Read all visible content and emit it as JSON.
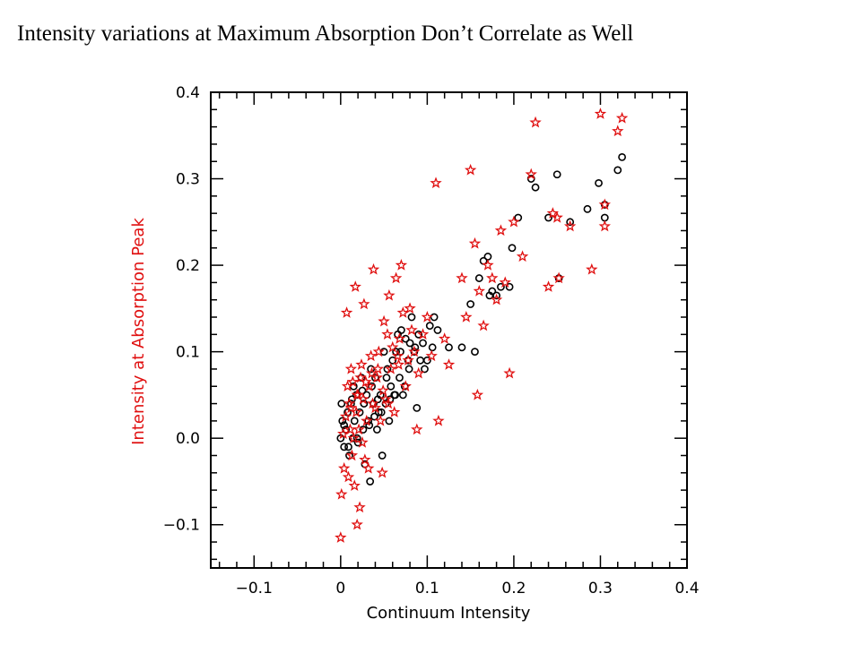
{
  "slide": {
    "title": "Intensity variations at Maximum Absorption Don’t Correlate as Well"
  },
  "chart_data": {
    "type": "scatter",
    "title": "",
    "xlabel": "Continuum Intensity",
    "ylabel": "Intensity at Absorption Peak",
    "xlim": [
      -0.15,
      0.4
    ],
    "ylim": [
      -0.15,
      0.4
    ],
    "xticks": [
      -0.1,
      0.0,
      0.1,
      0.2,
      0.3,
      0.4
    ],
    "yticks": [
      -0.1,
      0.0,
      0.1,
      0.2,
      0.3,
      0.4
    ],
    "xtick_labels": [
      "−0.1",
      "0",
      "0.1",
      "0.2",
      "0.3",
      "0.4"
    ],
    "ytick_labels": [
      "−0.1",
      "0.0",
      "0.1",
      "0.2",
      "0.3",
      "0.4"
    ],
    "grid": false,
    "colors": {
      "circles": "#000000",
      "stars": "#e01010",
      "ylabel": "#e01010",
      "xlabel": "#000000"
    },
    "series": [
      {
        "marker": "circle",
        "points": [
          [
            0.001,
            0.04
          ],
          [
            0.002,
            0.02
          ],
          [
            0.004,
            -0.01
          ],
          [
            0.006,
            0.01
          ],
          [
            0.008,
            0.03
          ],
          [
            0.01,
            -0.02
          ],
          [
            0.012,
            0.04
          ],
          [
            0.014,
            0.0
          ],
          [
            0.015,
            0.06
          ],
          [
            0.016,
            0.02
          ],
          [
            0.018,
            0.05
          ],
          [
            0.02,
            -0.005
          ],
          [
            0.022,
            0.03
          ],
          [
            0.024,
            0.07
          ],
          [
            0.026,
            0.01
          ],
          [
            0.028,
            -0.03
          ],
          [
            0.03,
            0.05
          ],
          [
            0.032,
            0.02
          ],
          [
            0.034,
            -0.05
          ],
          [
            0.035,
            0.08
          ],
          [
            0.036,
            0.06
          ],
          [
            0.038,
            0.04
          ],
          [
            0.04,
            0.07
          ],
          [
            0.042,
            0.01
          ],
          [
            0.044,
            0.03
          ],
          [
            0.046,
            0.05
          ],
          [
            0.048,
            -0.02
          ],
          [
            0.05,
            0.1
          ],
          [
            0.052,
            0.04
          ],
          [
            0.054,
            0.08
          ],
          [
            0.056,
            0.02
          ],
          [
            0.058,
            0.06
          ],
          [
            0.06,
            0.09
          ],
          [
            0.062,
            0.05
          ],
          [
            0.064,
            0.1
          ],
          [
            0.066,
            0.12
          ],
          [
            0.068,
            0.07
          ],
          [
            0.07,
            0.125
          ],
          [
            0.072,
            0.05
          ],
          [
            0.075,
            0.115
          ],
          [
            0.078,
            0.09
          ],
          [
            0.08,
            0.11
          ],
          [
            0.082,
            0.14
          ],
          [
            0.085,
            0.1
          ],
          [
            0.088,
            0.035
          ],
          [
            0.09,
            0.12
          ],
          [
            0.092,
            0.09
          ],
          [
            0.095,
            0.11
          ],
          [
            0.1,
            0.09
          ],
          [
            0.103,
            0.13
          ],
          [
            0.106,
            0.105
          ],
          [
            0.108,
            0.14
          ],
          [
            0.112,
            0.125
          ],
          [
            0.125,
            0.105
          ],
          [
            0.14,
            0.105
          ],
          [
            0.15,
            0.155
          ],
          [
            0.155,
            0.1
          ],
          [
            0.16,
            0.185
          ],
          [
            0.165,
            0.205
          ],
          [
            0.17,
            0.21
          ],
          [
            0.172,
            0.165
          ],
          [
            0.175,
            0.17
          ],
          [
            0.18,
            0.165
          ],
          [
            0.185,
            0.175
          ],
          [
            0.195,
            0.175
          ],
          [
            0.198,
            0.22
          ],
          [
            0.205,
            0.255
          ],
          [
            0.22,
            0.3
          ],
          [
            0.225,
            0.29
          ],
          [
            0.24,
            0.255
          ],
          [
            0.25,
            0.305
          ],
          [
            0.252,
            0.185
          ],
          [
            0.265,
            0.25
          ],
          [
            0.285,
            0.265
          ],
          [
            0.298,
            0.295
          ],
          [
            0.305,
            0.255
          ],
          [
            0.305,
            0.27
          ],
          [
            0.32,
            0.31
          ],
          [
            0.325,
            0.325
          ],
          [
            0.0,
            0.0
          ],
          [
            0.004,
            0.015
          ],
          [
            0.009,
            -0.01
          ],
          [
            0.013,
            0.045
          ],
          [
            0.019,
            0.0
          ],
          [
            0.025,
            0.055
          ],
          [
            0.027,
            0.04
          ],
          [
            0.033,
            0.015
          ],
          [
            0.039,
            0.025
          ],
          [
            0.043,
            0.045
          ],
          [
            0.047,
            0.03
          ],
          [
            0.053,
            0.07
          ],
          [
            0.057,
            0.045
          ],
          [
            0.063,
            0.05
          ],
          [
            0.069,
            0.1
          ],
          [
            0.074,
            0.06
          ],
          [
            0.079,
            0.08
          ],
          [
            0.086,
            0.105
          ],
          [
            0.097,
            0.08
          ]
        ]
      },
      {
        "marker": "star",
        "points": [
          [
            0.0,
            -0.115
          ],
          [
            0.001,
            -0.065
          ],
          [
            0.004,
            -0.035
          ],
          [
            0.006,
            0.025
          ],
          [
            0.007,
            0.145
          ],
          [
            0.008,
            0.06
          ],
          [
            0.009,
            -0.045
          ],
          [
            0.01,
            0.04
          ],
          [
            0.011,
            0.01
          ],
          [
            0.012,
            0.08
          ],
          [
            0.013,
            -0.02
          ],
          [
            0.014,
            0.065
          ],
          [
            0.015,
            0.0
          ],
          [
            0.016,
            -0.055
          ],
          [
            0.017,
            0.175
          ],
          [
            0.018,
            0.03
          ],
          [
            0.019,
            -0.1
          ],
          [
            0.02,
            0.05
          ],
          [
            0.021,
            0.01
          ],
          [
            0.022,
            -0.08
          ],
          [
            0.023,
            0.07
          ],
          [
            0.024,
            0.085
          ],
          [
            0.025,
            -0.005
          ],
          [
            0.026,
            0.045
          ],
          [
            0.027,
            0.155
          ],
          [
            0.028,
            -0.025
          ],
          [
            0.03,
            0.02
          ],
          [
            0.032,
            -0.035
          ],
          [
            0.033,
            0.06
          ],
          [
            0.035,
            0.095
          ],
          [
            0.036,
            0.075
          ],
          [
            0.038,
            0.195
          ],
          [
            0.04,
            0.035
          ],
          [
            0.042,
            0.07
          ],
          [
            0.044,
            0.1
          ],
          [
            0.046,
            0.02
          ],
          [
            0.048,
            -0.04
          ],
          [
            0.05,
            0.135
          ],
          [
            0.052,
            0.045
          ],
          [
            0.054,
            0.12
          ],
          [
            0.056,
            0.165
          ],
          [
            0.058,
            0.08
          ],
          [
            0.06,
            0.105
          ],
          [
            0.062,
            0.03
          ],
          [
            0.064,
            0.185
          ],
          [
            0.066,
            0.095
          ],
          [
            0.068,
            0.115
          ],
          [
            0.07,
            0.2
          ],
          [
            0.072,
            0.145
          ],
          [
            0.075,
            0.06
          ],
          [
            0.078,
            0.09
          ],
          [
            0.08,
            0.15
          ],
          [
            0.082,
            0.125
          ],
          [
            0.085,
            0.1
          ],
          [
            0.088,
            0.01
          ],
          [
            0.09,
            0.075
          ],
          [
            0.095,
            0.12
          ],
          [
            0.1,
            0.14
          ],
          [
            0.105,
            0.095
          ],
          [
            0.11,
            0.295
          ],
          [
            0.113,
            0.02
          ],
          [
            0.12,
            0.115
          ],
          [
            0.125,
            0.085
          ],
          [
            0.14,
            0.185
          ],
          [
            0.145,
            0.14
          ],
          [
            0.15,
            0.31
          ],
          [
            0.155,
            0.225
          ],
          [
            0.158,
            0.05
          ],
          [
            0.16,
            0.17
          ],
          [
            0.165,
            0.13
          ],
          [
            0.17,
            0.2
          ],
          [
            0.175,
            0.185
          ],
          [
            0.18,
            0.16
          ],
          [
            0.185,
            0.24
          ],
          [
            0.19,
            0.18
          ],
          [
            0.195,
            0.075
          ],
          [
            0.2,
            0.25
          ],
          [
            0.21,
            0.21
          ],
          [
            0.22,
            0.305
          ],
          [
            0.225,
            0.365
          ],
          [
            0.24,
            0.175
          ],
          [
            0.245,
            0.26
          ],
          [
            0.25,
            0.255
          ],
          [
            0.252,
            0.185
          ],
          [
            0.265,
            0.245
          ],
          [
            0.29,
            0.195
          ],
          [
            0.3,
            0.375
          ],
          [
            0.305,
            0.245
          ],
          [
            0.305,
            0.27
          ],
          [
            0.32,
            0.355
          ],
          [
            0.325,
            0.37
          ],
          [
            0.003,
            0.005
          ],
          [
            0.012,
            0.035
          ],
          [
            0.019,
            0.05
          ],
          [
            0.029,
            0.065
          ],
          [
            0.037,
            0.04
          ],
          [
            0.043,
            0.08
          ],
          [
            0.049,
            0.055
          ],
          [
            0.055,
            0.04
          ],
          [
            0.067,
            0.085
          ]
        ]
      }
    ]
  }
}
